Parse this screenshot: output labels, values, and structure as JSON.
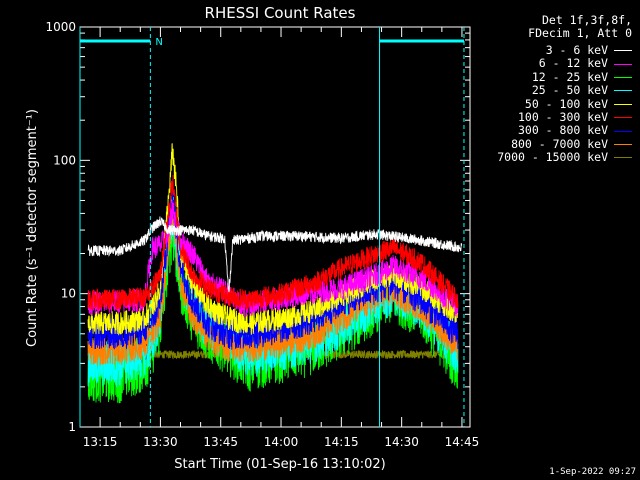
{
  "chart_data": {
    "type": "line",
    "title": "RHESSI Count Rates",
    "xlabel": "Start Time (01-Sep-16 13:10:02)",
    "ylabel": "Count Rate (s⁻¹ detector segment⁻¹)",
    "x_range_min": [
      10,
      107
    ],
    "y_scale": "log",
    "ylim": [
      1,
      1000
    ],
    "y_ticks": [
      1,
      10,
      100,
      1000
    ],
    "y_tick_labels": [
      "1",
      "10",
      "100",
      "1000"
    ],
    "x_ticks_min": [
      15,
      30,
      45,
      60,
      75,
      90,
      105
    ],
    "x_tick_labels": [
      "13:15",
      "13:30",
      "13:45",
      "14:00",
      "14:15",
      "14:30",
      "14:45"
    ],
    "legend_header": [
      "Det 1f,3f,8f,",
      "FDecim 1, Att 0"
    ],
    "legend_placement": "right, outside plot",
    "annotations": {
      "night_marker_label": "N",
      "night_intervals_min": [
        [
          10,
          27.5
        ],
        [
          84.5,
          105.5
        ]
      ],
      "vertical_markers_solid_min": [
        10,
        84.5
      ],
      "vertical_markers_dashed_min": [
        27.5,
        105.5
      ]
    },
    "series": [
      {
        "name": "3 - 6 keV",
        "color": "#ffffff",
        "points": [
          [
            12,
            21
          ],
          [
            20,
            21
          ],
          [
            26,
            25
          ],
          [
            28,
            31
          ],
          [
            30,
            35
          ],
          [
            32,
            30
          ],
          [
            35,
            30
          ],
          [
            38,
            30
          ],
          [
            42,
            27
          ],
          [
            46,
            26
          ],
          [
            47,
            10
          ],
          [
            48,
            25
          ],
          [
            55,
            27
          ],
          [
            65,
            27
          ],
          [
            75,
            26
          ],
          [
            84,
            28
          ],
          [
            95,
            25
          ],
          [
            105,
            22
          ]
        ]
      },
      {
        "name": "6 - 12 keV",
        "color": "#ff00ff",
        "points": [
          [
            12,
            8.5
          ],
          [
            20,
            8.7
          ],
          [
            26,
            9
          ],
          [
            28,
            22
          ],
          [
            30,
            23
          ],
          [
            32,
            28
          ],
          [
            33,
            45
          ],
          [
            35,
            25
          ],
          [
            38,
            20
          ],
          [
            42,
            12
          ],
          [
            47,
            10
          ],
          [
            50,
            8
          ],
          [
            58,
            9
          ],
          [
            66,
            10
          ],
          [
            75,
            11
          ],
          [
            84,
            14
          ],
          [
            88,
            16
          ],
          [
            95,
            13
          ],
          [
            104,
            8
          ]
        ]
      },
      {
        "name": "12 - 25 keV",
        "color": "#00ff00",
        "points": [
          [
            12,
            2.5
          ],
          [
            20,
            2.5
          ],
          [
            26,
            3
          ],
          [
            28,
            4
          ],
          [
            30,
            6
          ],
          [
            32,
            20
          ],
          [
            33,
            30
          ],
          [
            35,
            12
          ],
          [
            38,
            7
          ],
          [
            42,
            5
          ],
          [
            47,
            4
          ],
          [
            52,
            3
          ],
          [
            60,
            3.5
          ],
          [
            68,
            4
          ],
          [
            76,
            5.5
          ],
          [
            84,
            8.5
          ],
          [
            88,
            10
          ],
          [
            95,
            7.5
          ],
          [
            104,
            3
          ]
        ]
      },
      {
        "name": "25 - 50 keV",
        "color": "#00ffff",
        "points": [
          [
            12,
            3
          ],
          [
            20,
            3
          ],
          [
            26,
            3.5
          ],
          [
            28,
            4.5
          ],
          [
            30,
            7
          ],
          [
            32,
            25
          ],
          [
            33,
            40
          ],
          [
            35,
            14
          ],
          [
            38,
            8
          ],
          [
            42,
            5.5
          ],
          [
            47,
            4.5
          ],
          [
            52,
            3.5
          ],
          [
            60,
            4
          ],
          [
            68,
            4.5
          ],
          [
            76,
            6
          ],
          [
            84,
            9
          ],
          [
            88,
            10.5
          ],
          [
            95,
            8
          ],
          [
            104,
            3.5
          ]
        ]
      },
      {
        "name": "50 - 100 keV",
        "color": "#ffff00",
        "points": [
          [
            12,
            6
          ],
          [
            20,
            6
          ],
          [
            26,
            6.5
          ],
          [
            28,
            8
          ],
          [
            30,
            11
          ],
          [
            32,
            50
          ],
          [
            33,
            120
          ],
          [
            34,
            60
          ],
          [
            35,
            20
          ],
          [
            38,
            12
          ],
          [
            42,
            8
          ],
          [
            47,
            6.5
          ],
          [
            52,
            6
          ],
          [
            60,
            6.5
          ],
          [
            68,
            7.5
          ],
          [
            76,
            10
          ],
          [
            84,
            13
          ],
          [
            88,
            14
          ],
          [
            95,
            11
          ],
          [
            104,
            7
          ]
        ]
      },
      {
        "name": "100 - 300 keV",
        "color": "#ff0000",
        "points": [
          [
            12,
            9
          ],
          [
            20,
            9
          ],
          [
            26,
            9.5
          ],
          [
            28,
            11
          ],
          [
            30,
            14
          ],
          [
            32,
            40
          ],
          [
            33,
            70
          ],
          [
            35,
            22
          ],
          [
            38,
            14
          ],
          [
            42,
            11
          ],
          [
            47,
            9.5
          ],
          [
            52,
            9
          ],
          [
            60,
            10
          ],
          [
            68,
            12
          ],
          [
            76,
            16
          ],
          [
            84,
            20
          ],
          [
            88,
            22
          ],
          [
            95,
            17
          ],
          [
            104,
            9
          ]
        ]
      },
      {
        "name": "300 - 800 keV",
        "color": "#0000ff",
        "points": [
          [
            12,
            5
          ],
          [
            20,
            5
          ],
          [
            26,
            5.5
          ],
          [
            28,
            6.5
          ],
          [
            30,
            9
          ],
          [
            32,
            30
          ],
          [
            33,
            55
          ],
          [
            35,
            16
          ],
          [
            38,
            9
          ],
          [
            42,
            6
          ],
          [
            47,
            5
          ],
          [
            52,
            5
          ],
          [
            60,
            5.5
          ],
          [
            68,
            6.5
          ],
          [
            76,
            9
          ],
          [
            84,
            11
          ],
          [
            88,
            12
          ],
          [
            95,
            9
          ],
          [
            104,
            5
          ]
        ]
      },
      {
        "name": "800 - 7000 keV",
        "color": "#ff8000",
        "points": [
          [
            12,
            3.8
          ],
          [
            20,
            3.8
          ],
          [
            26,
            4.2
          ],
          [
            28,
            5
          ],
          [
            30,
            7
          ],
          [
            32,
            22
          ],
          [
            33,
            45
          ],
          [
            35,
            12
          ],
          [
            38,
            7
          ],
          [
            42,
            4.8
          ],
          [
            47,
            4
          ],
          [
            52,
            4
          ],
          [
            60,
            4.3
          ],
          [
            68,
            5
          ],
          [
            76,
            7
          ],
          [
            84,
            9.5
          ],
          [
            88,
            10.5
          ],
          [
            95,
            8
          ],
          [
            104,
            4
          ]
        ]
      },
      {
        "name": "7000 - 15000 keV",
        "color": "#808000",
        "points": [
          [
            12,
            3.5
          ],
          [
            104,
            3.5
          ]
        ]
      }
    ]
  },
  "stamp": "1-Sep-2022 09:27"
}
